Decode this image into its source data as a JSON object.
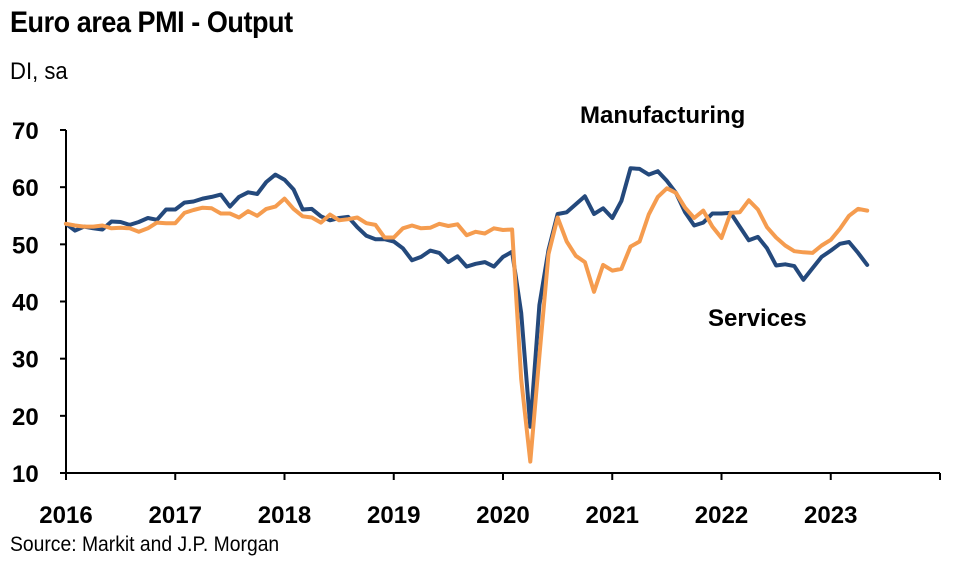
{
  "title": "Euro area PMI - Output",
  "subtitle": "DI, sa",
  "source": "Source: Markit and J.P. Morgan",
  "chart_data": {
    "type": "line",
    "title": "Euro area PMI - Output",
    "subtitle": "DI, sa",
    "xlabel": "",
    "ylabel": "",
    "ylim": [
      10,
      70
    ],
    "yticks": [
      10,
      20,
      30,
      40,
      50,
      60,
      70
    ],
    "xticks": [
      "2016",
      "2017",
      "2018",
      "2019",
      "2020",
      "2021",
      "2022",
      "2023"
    ],
    "xlim": [
      "2016-01",
      "2023-12"
    ],
    "grid": false,
    "x": [
      "2016-01",
      "2016-02",
      "2016-03",
      "2016-04",
      "2016-05",
      "2016-06",
      "2016-07",
      "2016-08",
      "2016-09",
      "2016-10",
      "2016-11",
      "2016-12",
      "2017-01",
      "2017-02",
      "2017-03",
      "2017-04",
      "2017-05",
      "2017-06",
      "2017-07",
      "2017-08",
      "2017-09",
      "2017-10",
      "2017-11",
      "2017-12",
      "2018-01",
      "2018-02",
      "2018-03",
      "2018-04",
      "2018-05",
      "2018-06",
      "2018-07",
      "2018-08",
      "2018-09",
      "2018-10",
      "2018-11",
      "2018-12",
      "2019-01",
      "2019-02",
      "2019-03",
      "2019-04",
      "2019-05",
      "2019-06",
      "2019-07",
      "2019-08",
      "2019-09",
      "2019-10",
      "2019-11",
      "2019-12",
      "2020-01",
      "2020-02",
      "2020-03",
      "2020-04",
      "2020-05",
      "2020-06",
      "2020-07",
      "2020-08",
      "2020-09",
      "2020-10",
      "2020-11",
      "2020-12",
      "2021-01",
      "2021-02",
      "2021-03",
      "2021-04",
      "2021-05",
      "2021-06",
      "2021-07",
      "2021-08",
      "2021-09",
      "2021-10",
      "2021-11",
      "2021-12",
      "2022-01",
      "2022-02",
      "2022-03",
      "2022-04",
      "2022-05",
      "2022-06",
      "2022-07",
      "2022-08",
      "2022-09",
      "2022-10",
      "2022-11",
      "2022-12",
      "2023-01",
      "2023-02",
      "2023-03",
      "2023-04",
      "2023-05"
    ],
    "series": [
      {
        "name": "Manufacturing",
        "color": "#24497c",
        "values": [
          53.6,
          52.4,
          53.1,
          52.8,
          52.6,
          54.0,
          53.9,
          53.4,
          53.9,
          54.6,
          54.3,
          56.1,
          56.1,
          57.3,
          57.5,
          58.0,
          58.3,
          58.7,
          56.6,
          58.3,
          59.1,
          58.8,
          60.9,
          62.2,
          61.3,
          59.6,
          56.1,
          56.2,
          54.9,
          54.2,
          54.6,
          54.8,
          53.0,
          51.5,
          50.9,
          50.9,
          50.5,
          49.3,
          47.2,
          47.8,
          48.9,
          48.5,
          46.9,
          47.9,
          46.1,
          46.6,
          46.9,
          46.1,
          47.8,
          48.7,
          38.0,
          18.1,
          39.4,
          49.0,
          55.3,
          55.6,
          57.0,
          58.4,
          55.3,
          56.3,
          54.6,
          57.6,
          63.3,
          63.2,
          62.2,
          62.8,
          61.1,
          59.0,
          55.6,
          53.3,
          53.8,
          55.4,
          55.4,
          55.5,
          53.1,
          50.7,
          51.3,
          49.3,
          46.3,
          46.5,
          46.2,
          43.8,
          45.8,
          47.8,
          48.9,
          50.1,
          50.4,
          48.5,
          46.4
        ]
      },
      {
        "name": "Services",
        "color": "#f59c4f",
        "values": [
          53.6,
          53.3,
          53.1,
          53.1,
          53.3,
          52.8,
          52.9,
          52.8,
          52.2,
          52.8,
          53.8,
          53.7,
          53.7,
          55.5,
          56.0,
          56.4,
          56.3,
          55.4,
          55.4,
          54.7,
          55.8,
          55.0,
          56.2,
          56.6,
          58.0,
          56.2,
          54.9,
          54.7,
          53.8,
          55.2,
          54.2,
          54.4,
          54.7,
          53.7,
          53.4,
          51.2,
          51.2,
          52.8,
          53.3,
          52.8,
          52.9,
          53.6,
          53.2,
          53.5,
          51.6,
          52.2,
          51.9,
          52.8,
          52.5,
          52.6,
          26.4,
          12.0,
          30.5,
          48.3,
          54.7,
          50.5,
          48.0,
          46.9,
          41.7,
          46.4,
          45.4,
          45.7,
          49.6,
          50.5,
          55.2,
          58.3,
          59.8,
          59.0,
          56.4,
          54.6,
          55.9,
          53.1,
          51.1,
          55.5,
          55.6,
          57.7,
          56.1,
          53.0,
          51.2,
          49.8,
          48.8,
          48.6,
          48.5,
          49.8,
          50.8,
          52.7,
          55.0,
          56.2,
          55.9
        ]
      }
    ],
    "annotations": [
      "Manufacturing",
      "Services"
    ]
  }
}
